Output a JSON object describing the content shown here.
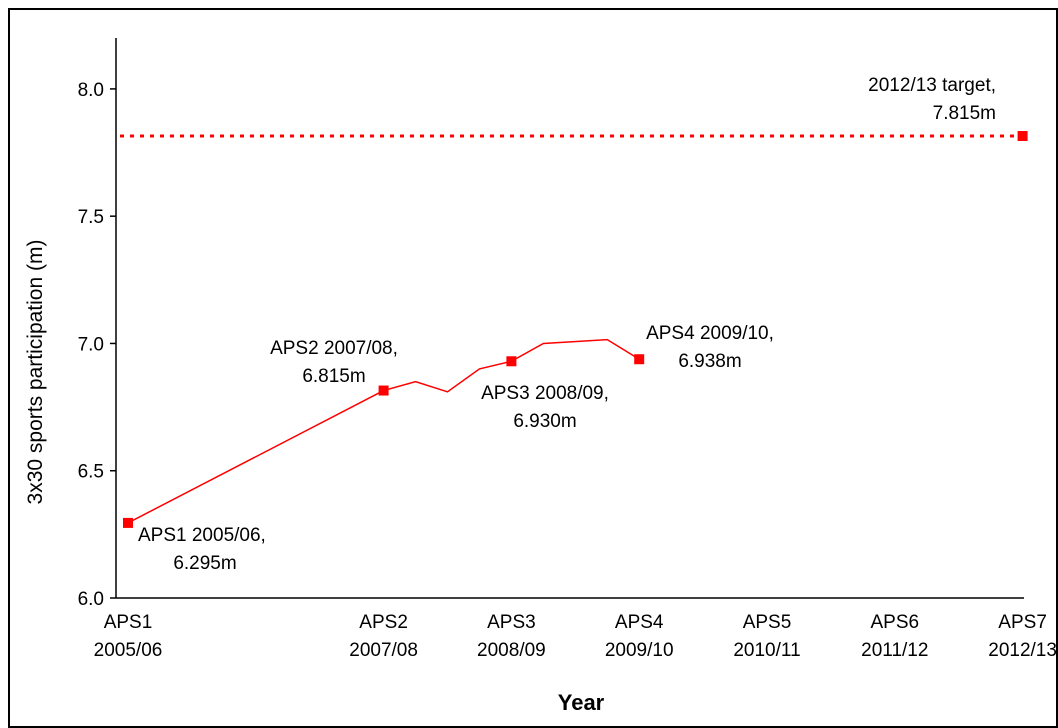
{
  "chart_data": {
    "type": "line",
    "title": "",
    "xlabel": "Year",
    "ylabel": "3x30 sports participation (m)",
    "ylim": [
      6.0,
      8.2
    ],
    "yticks": [
      6.0,
      6.5,
      7.0,
      7.5,
      8.0
    ],
    "x_categories": [
      {
        "line1": "APS1",
        "line2": "2005/06",
        "pos": 0
      },
      {
        "line1": "APS2",
        "line2": "2007/08",
        "pos": 2
      },
      {
        "line1": "APS3",
        "line2": "2008/09",
        "pos": 3
      },
      {
        "line1": "APS4",
        "line2": "2009/10",
        "pos": 4
      },
      {
        "line1": "APS5",
        "line2": "2010/11",
        "pos": 5
      },
      {
        "line1": "APS6",
        "line2": "2011/12",
        "pos": 6
      },
      {
        "line1": "APS7",
        "line2": "2012/13",
        "pos": 7
      }
    ],
    "series_line": [
      [
        0,
        6.295
      ],
      [
        2,
        6.815
      ],
      [
        2.25,
        6.85
      ],
      [
        2.5,
        6.81
      ],
      [
        2.75,
        6.9
      ],
      [
        3,
        6.93
      ],
      [
        3.25,
        7.0
      ],
      [
        3.75,
        7.015
      ],
      [
        4,
        6.938
      ]
    ],
    "markers": [
      {
        "x": 0,
        "y": 6.295,
        "label1": "APS1 2005/06,",
        "label2": "6.295m"
      },
      {
        "x": 2,
        "y": 6.815,
        "label1": "APS2 2007/08,",
        "label2": "6.815m"
      },
      {
        "x": 3,
        "y": 6.93,
        "label1": "APS3 2008/09,",
        "label2": "6.930m"
      },
      {
        "x": 4,
        "y": 6.938,
        "label1": "APS4 2009/10,",
        "label2": "6.938m"
      },
      {
        "x": 7,
        "y": 7.815,
        "label1": "2012/13 target,",
        "label2": "7.815m"
      }
    ],
    "target": {
      "value": 7.815,
      "style": "dotted"
    },
    "grid": false,
    "colors": {
      "series": "#ff0000",
      "axis": "#000000"
    }
  }
}
